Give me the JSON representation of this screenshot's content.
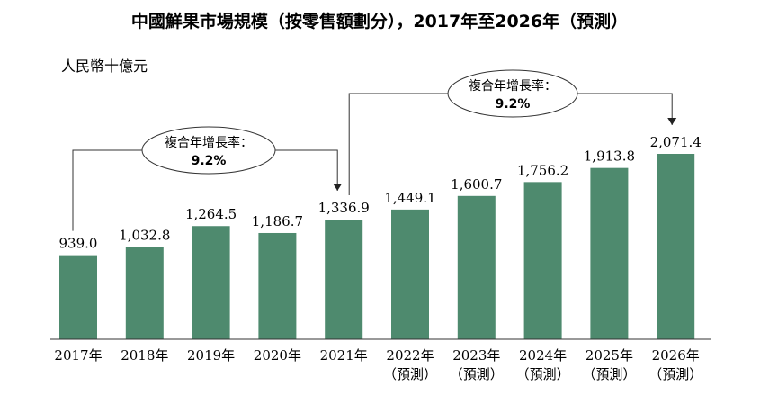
{
  "chart_data": {
    "type": "bar",
    "title": "中國鮮果市場規模（按零售額劃分），2017年至2026年（預測）",
    "ylabel": "人民幣十億元",
    "categories": [
      "2017年",
      "2018年",
      "2019年",
      "2020年",
      "2021年",
      "2022年",
      "2023年",
      "2024年",
      "2025年",
      "2026年"
    ],
    "category_notes": [
      "",
      "",
      "",
      "",
      "",
      "（預測）",
      "（預測）",
      "（預測）",
      "（預測）",
      "（預測）"
    ],
    "values": [
      939.0,
      1032.8,
      1264.5,
      1186.7,
      1336.9,
      1449.1,
      1600.7,
      1756.2,
      1913.8,
      2071.4
    ],
    "value_labels": [
      "939.0",
      "1,032.8",
      "1,264.5",
      "1,186.7",
      "1,336.9",
      "1,449.1",
      "1,600.7",
      "1,756.2",
      "1,913.8",
      "2,071.4"
    ],
    "bar_color": "#4e8a6e",
    "grid": false,
    "annotations": [
      {
        "label": "複合年增長率：",
        "value": "9.2%",
        "from": "2017年",
        "to": "2021年"
      },
      {
        "label": "複合年增長率：",
        "value": "9.2%",
        "from": "2021年",
        "to": "2026年"
      }
    ]
  }
}
